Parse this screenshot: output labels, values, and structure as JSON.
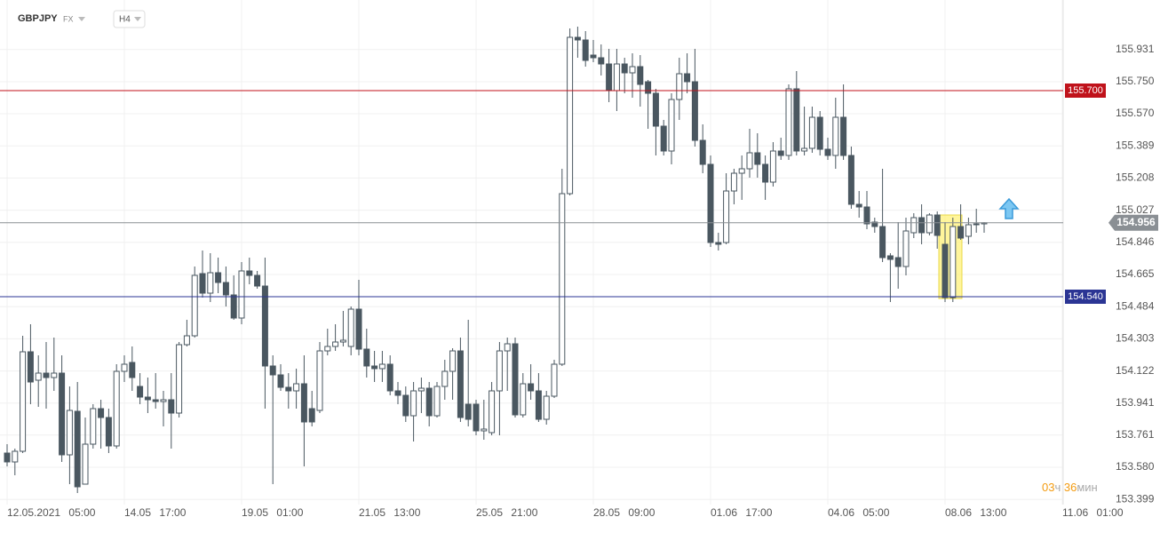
{
  "chart_data": {
    "type": "candlestick",
    "symbol": "GBPJPY",
    "market": "FX",
    "timeframe": "H4",
    "up_color": "#ffffff",
    "down_color": "#4a5760",
    "wick_color": "#4a5760",
    "open": [
      153.66,
      153.61,
      153.67,
      154.23,
      154.07,
      154.11,
      154.085,
      154.11,
      153.65,
      153.895,
      153.485,
      153.71,
      153.91,
      153.86,
      153.7,
      154.12,
      154.17,
      154.035,
      153.975,
      153.96,
      153.95,
      153.96,
      153.885,
      154.27,
      154.32,
      154.67,
      154.56,
      154.675,
      154.62,
      154.55,
      154.42,
      154.685,
      154.66,
      154.6,
      154.15,
      154.1,
      154.03,
      154.01,
      154.05,
      153.91,
      153.9,
      154.235,
      154.26,
      154.285,
      154.26,
      154.47,
      154.245,
      154.15,
      154.135,
      154.16,
      154.01,
      153.985,
      153.87,
      154.01,
      154.025,
      153.87,
      154.035,
      154.12,
      154.235,
      153.935,
      153.935,
      153.785,
      153.775,
      154.01,
      154.235,
      154.275,
      153.875,
      154.05,
      154.01,
      153.85,
      153.98,
      154.16,
      155.12,
      156.0,
      155.985,
      155.9,
      155.885,
      155.85,
      155.7,
      155.85,
      155.8,
      155.835,
      155.75,
      155.685,
      155.5,
      155.36,
      155.65,
      155.795,
      155.75,
      155.42,
      155.285,
      154.845,
      154.845,
      155.135,
      155.235,
      155.26,
      155.35,
      155.285,
      155.185,
      155.36,
      155.335,
      155.71,
      155.36,
      155.375,
      155.55,
      155.37,
      155.335,
      155.55,
      155.335,
      155.06,
      155.045,
      154.96,
      154.935,
      154.77,
      154.76,
      154.71,
      154.9,
      154.985,
      154.9,
      155.0,
      154.835,
      154.535,
      154.935,
      154.88,
      154.945,
      154.95
    ],
    "high": [
      153.71,
      153.685,
      154.32,
      154.385,
      154.21,
      154.285,
      154.31,
      154.21,
      154.035,
      154.06,
      153.86,
      153.935,
      153.96,
      153.91,
      154.16,
      154.21,
      154.26,
      154.11,
      154.085,
      154.11,
      154.01,
      154.11,
      154.285,
      154.41,
      154.71,
      154.8,
      154.785,
      154.76,
      154.71,
      154.66,
      154.735,
      154.76,
      154.685,
      154.76,
      154.21,
      154.16,
      154.11,
      154.135,
      154.21,
      154.01,
      154.285,
      154.36,
      154.385,
      154.46,
      154.485,
      154.635,
      154.36,
      154.235,
      154.235,
      154.21,
      154.06,
      154.035,
      154.06,
      154.085,
      154.06,
      154.06,
      154.185,
      154.25,
      154.31,
      154.41,
      153.96,
      153.96,
      154.06,
      154.285,
      154.31,
      154.31,
      154.11,
      154.16,
      154.11,
      154.01,
      154.185,
      155.26,
      156.05,
      156.06,
      156.035,
      155.985,
      155.96,
      155.935,
      155.935,
      155.885,
      155.91,
      155.9,
      155.76,
      155.71,
      155.535,
      155.685,
      155.885,
      155.91,
      155.935,
      155.51,
      155.335,
      154.9,
      155.235,
      155.26,
      155.335,
      155.485,
      155.46,
      155.335,
      155.41,
      155.435,
      155.735,
      155.81,
      155.61,
      155.61,
      155.585,
      155.435,
      155.66,
      155.735,
      155.385,
      155.135,
      155.135,
      154.985,
      155.26,
      154.785,
      154.96,
      154.985,
      155.01,
      155.06,
      155.01,
      155.02,
      154.96,
      154.985,
      155.06,
      154.985,
      155.035,
      154.96
    ],
    "low": [
      153.585,
      153.535,
      153.66,
      153.935,
      153.92,
      153.91,
      154.01,
      153.61,
      153.485,
      153.435,
      153.485,
      153.685,
      153.685,
      153.66,
      153.685,
      154.06,
      154.01,
      153.935,
      153.885,
      153.91,
      153.81,
      153.685,
      153.86,
      154.26,
      154.31,
      154.535,
      154.51,
      154.56,
      154.485,
      154.41,
      154.385,
      154.61,
      154.585,
      153.91,
      153.485,
      154.01,
      153.91,
      153.91,
      153.585,
      153.81,
      153.885,
      154.21,
      154.235,
      154.26,
      154.21,
      154.21,
      154.085,
      154.06,
      154.06,
      153.985,
      153.935,
      153.835,
      153.725,
      153.885,
      153.81,
      153.86,
      153.96,
      153.96,
      153.835,
      153.81,
      153.76,
      153.735,
      153.76,
      153.76,
      154.01,
      153.86,
      153.86,
      153.96,
      153.835,
      153.82,
      153.97,
      154.15,
      155.11,
      155.885,
      155.835,
      155.86,
      155.785,
      155.635,
      155.585,
      155.685,
      155.66,
      155.61,
      155.485,
      155.335,
      155.335,
      155.285,
      155.535,
      155.685,
      155.385,
      155.235,
      154.82,
      154.8,
      154.835,
      155.06,
      155.085,
      155.21,
      155.21,
      155.085,
      155.16,
      155.31,
      155.31,
      155.335,
      155.335,
      155.35,
      155.335,
      155.31,
      155.26,
      155.31,
      155.035,
      154.985,
      154.92,
      154.9,
      154.735,
      154.51,
      154.585,
      154.66,
      154.87,
      154.835,
      154.885,
      154.81,
      154.51,
      154.51,
      154.86,
      154.835,
      154.9,
      154.9
    ],
    "close": [
      153.61,
      153.67,
      154.23,
      154.06,
      154.11,
      154.085,
      154.11,
      153.65,
      153.9,
      153.47,
      153.71,
      153.91,
      153.86,
      153.7,
      154.12,
      154.16,
      154.085,
      153.975,
      153.96,
      153.95,
      153.96,
      153.885,
      154.27,
      154.32,
      154.66,
      154.56,
      154.675,
      154.62,
      154.55,
      154.42,
      154.685,
      154.66,
      154.6,
      154.15,
      154.1,
      154.03,
      154.01,
      154.05,
      153.835,
      153.835,
      154.235,
      154.26,
      154.285,
      154.295,
      154.47,
      154.245,
      154.15,
      154.135,
      154.16,
      154.01,
      153.985,
      153.87,
      154.01,
      154.025,
      153.87,
      154.035,
      154.12,
      154.235,
      153.86,
      153.85,
      153.785,
      153.795,
      154.01,
      154.235,
      154.275,
      153.875,
      154.05,
      154.01,
      153.85,
      153.98,
      154.16,
      155.12,
      156.0,
      155.985,
      155.87,
      155.885,
      155.85,
      155.7,
      155.85,
      155.8,
      155.835,
      155.735,
      155.685,
      155.5,
      155.36,
      155.65,
      155.795,
      155.75,
      155.42,
      155.285,
      154.845,
      154.835,
      155.135,
      155.235,
      155.26,
      155.35,
      155.285,
      155.185,
      155.36,
      155.335,
      155.71,
      155.36,
      155.375,
      155.55,
      155.37,
      155.335,
      155.55,
      155.335,
      155.06,
      155.045,
      154.95,
      154.935,
      154.76,
      154.75,
      154.71,
      154.91,
      154.985,
      154.9,
      155.0,
      154.885,
      154.535,
      154.935,
      154.87,
      154.945,
      154.95,
      154.956
    ],
    "ylim": [
      153.37,
      156.21
    ],
    "yticks": [
      155.931,
      {
        "value": 155.75,
        "label": "155.750"
      },
      {
        "value": 155.57,
        "label": "155.570"
      },
      155.389,
      155.208,
      155.027,
      154.846,
      154.665,
      154.484,
      154.303,
      154.122,
      153.941,
      153.761,
      {
        "value": 153.58,
        "label": "153.580"
      },
      153.399
    ],
    "xticks": [
      {
        "value": 0,
        "label": "12.05.2021 05:00"
      },
      {
        "value": 15,
        "label": "14.05 17:00"
      },
      {
        "value": 30,
        "label": "19.05 01:00"
      },
      {
        "value": 45,
        "label": "21.05 13:00"
      },
      {
        "value": 60,
        "label": "25.05 21:00"
      },
      {
        "value": 75,
        "label": "28.05 09:00"
      },
      {
        "value": 90,
        "label": "01.06 17:00"
      },
      {
        "value": 105,
        "label": "04.06 05:00"
      },
      {
        "value": 120,
        "label": "08.06 13:00"
      },
      {
        "value": 135,
        "label": "11.06 01:00"
      }
    ],
    "levels": [
      {
        "value": 155.7,
        "label": "155.700",
        "color": "#c0121b"
      },
      {
        "value": 154.54,
        "label": "154.540",
        "color": "#2b3594"
      }
    ],
    "grid": true,
    "timer": {
      "hours": "03",
      "hours_unit": "ч",
      "minutes": "36",
      "minutes_unit": "мин"
    }
  }
}
